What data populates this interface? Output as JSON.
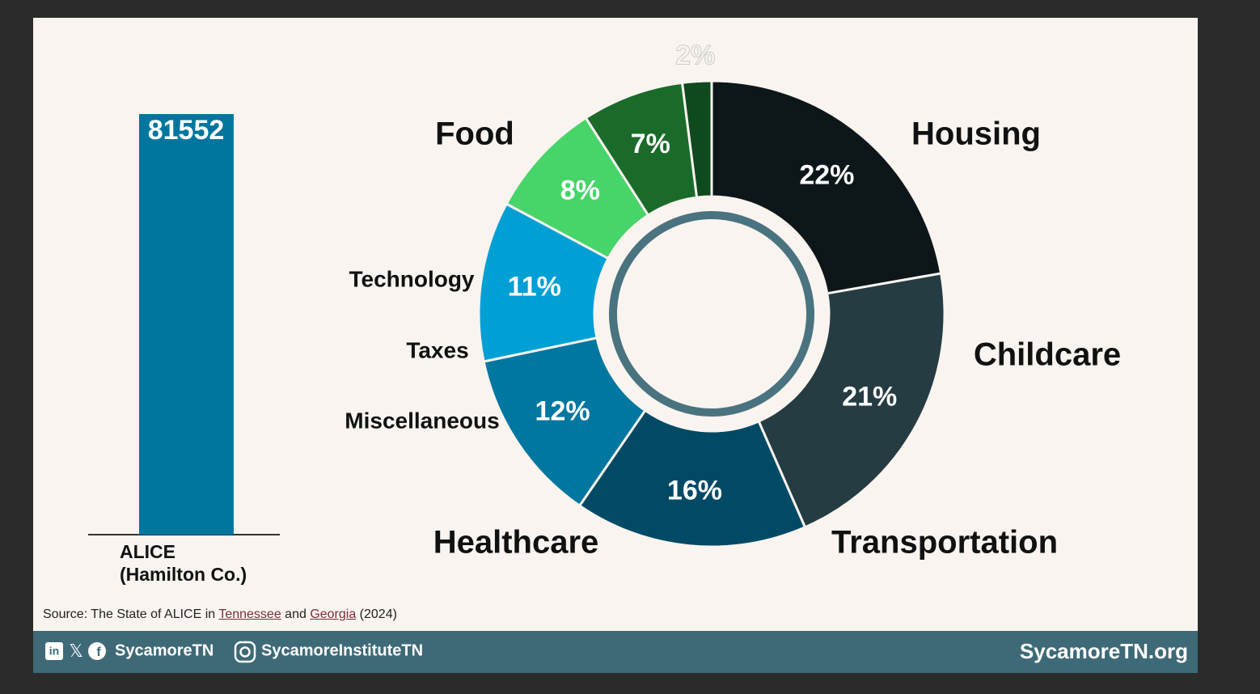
{
  "chart_data": [
    {
      "type": "bar",
      "categories": [
        "ALICE (Hamilton Co.)"
      ],
      "values": [
        81552
      ],
      "color": "#00769e"
    },
    {
      "type": "donut",
      "categories": [
        "Housing",
        "Childcare",
        "Transportation",
        "Healthcare",
        "Miscellaneous",
        "Taxes",
        "Technology",
        "Food"
      ],
      "values": [
        22,
        21,
        16,
        12,
        11,
        8,
        7,
        2
      ],
      "value_labels": [
        "22%",
        "21%",
        "16%",
        "12%",
        "11%",
        "8%",
        "7%",
        "2%"
      ],
      "colors": [
        "#0d1719",
        "#253c42",
        "#004a66",
        "#0077a0",
        "#009fd4",
        "#47d469",
        "#1a6b2a",
        "#0f4a1e"
      ]
    }
  ],
  "source": {
    "prefix": "Source: The State of ALICE in ",
    "link1": "Tennessee",
    "middle": " and ",
    "link2": "Georgia",
    "suffix": " (2024)"
  },
  "footer": {
    "handle": "SycamoreTN",
    "instagram": "SycamoreInstituteTN",
    "website": "SycamoreTN.org"
  }
}
